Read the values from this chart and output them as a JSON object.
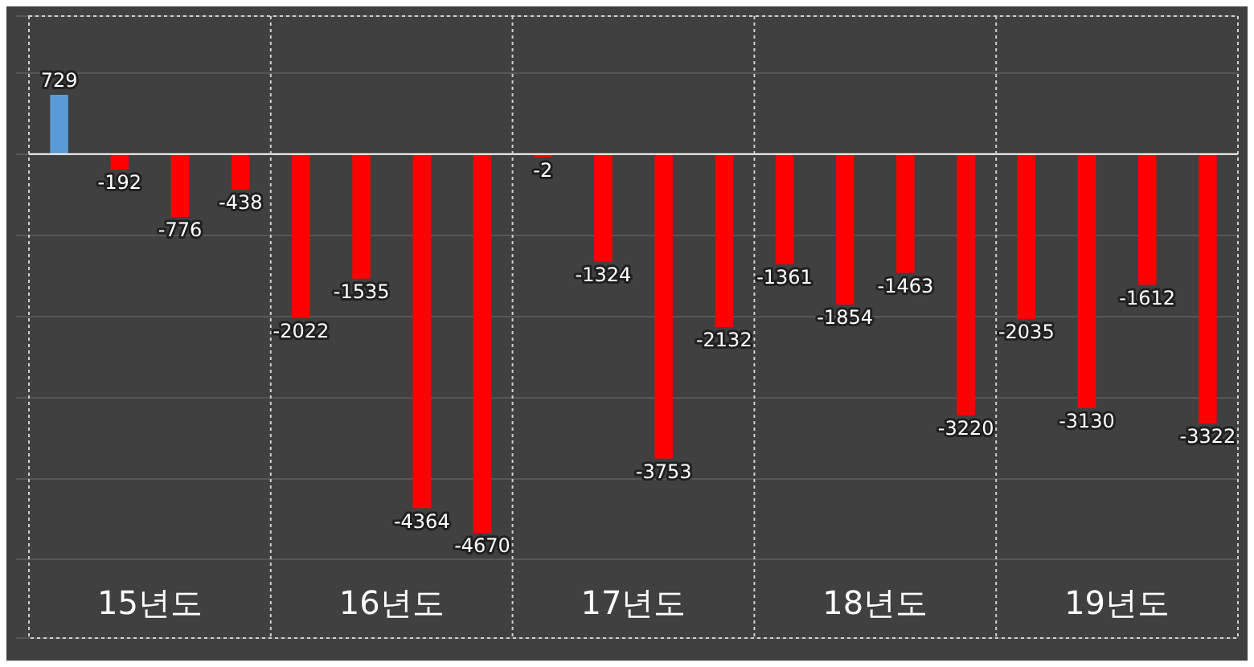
{
  "chart_data": {
    "type": "bar",
    "categories": [
      "15년도",
      "16년도",
      "17년도",
      "18년도",
      "19년도"
    ],
    "series": [
      {
        "colors": [
          "#5b9bd5",
          "#ff0000",
          "#ff0000",
          "#ff0000",
          "#ff0000"
        ],
        "values": [
          729,
          -2022,
          -2,
          -1361,
          -2035
        ]
      },
      {
        "color": "#ff0000",
        "values": [
          -192,
          -1535,
          -1324,
          -1854,
          -3130
        ]
      },
      {
        "color": "#ff0000",
        "values": [
          -776,
          -4364,
          -3753,
          -1463,
          -1612
        ]
      },
      {
        "color": "#ff0000",
        "values": [
          -438,
          -4670,
          -2132,
          -3220,
          -3322
        ]
      }
    ],
    "data_labels": true,
    "grid": true
  }
}
